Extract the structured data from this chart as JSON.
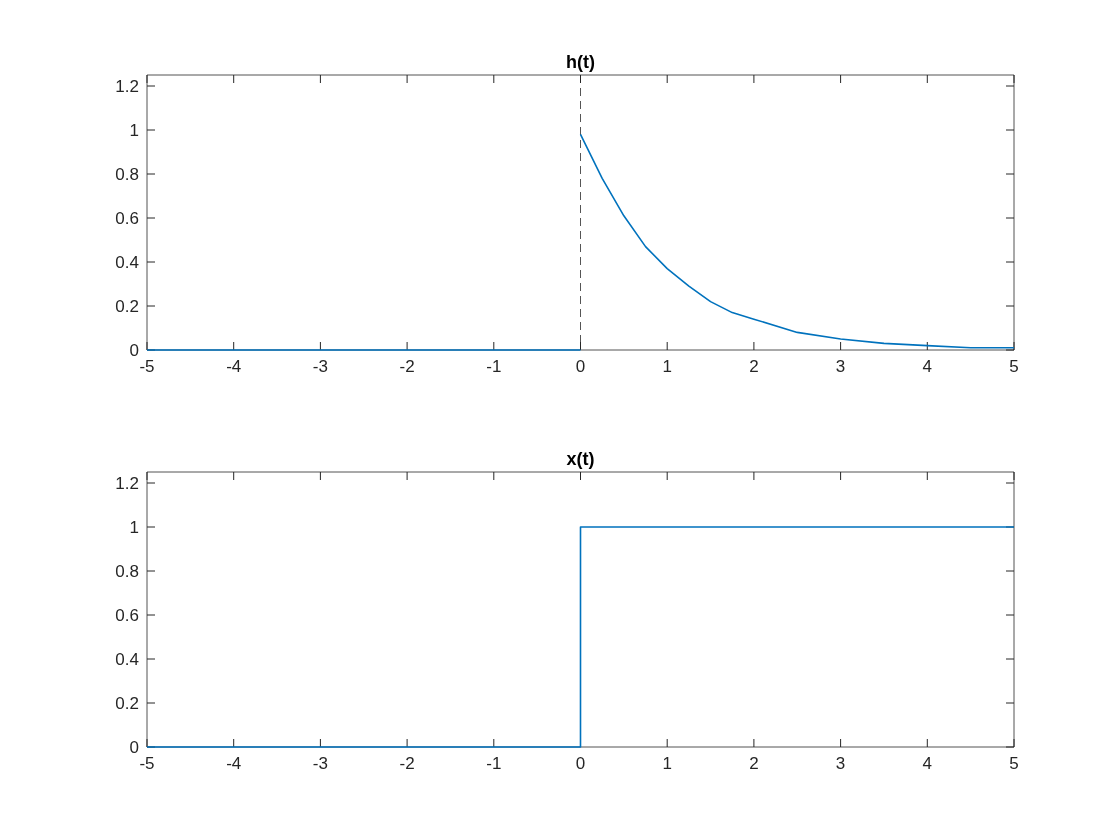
{
  "chart_data": [
    {
      "type": "line",
      "title": "h(t)",
      "xlim": [
        -5,
        5
      ],
      "xticks": [
        -5,
        -4,
        -3,
        -2,
        -1,
        0,
        1,
        2,
        3,
        4,
        5
      ],
      "ylim": [
        0,
        1.25
      ],
      "yticks": [
        0,
        0.2,
        0.4,
        0.6,
        0.8,
        1,
        1.2
      ],
      "series": [
        {
          "color": "#0072bd",
          "x": [
            -5,
            0
          ],
          "values": [
            0,
            0
          ]
        },
        {
          "color": "#0072bd",
          "x": [
            0,
            0.25,
            0.5,
            0.75,
            1,
            1.25,
            1.5,
            1.75,
            2,
            2.5,
            3,
            3.5,
            4,
            4.5,
            5
          ],
          "values": [
            0.98,
            0.78,
            0.61,
            0.47,
            0.37,
            0.29,
            0.22,
            0.17,
            0.14,
            0.08,
            0.05,
            0.03,
            0.02,
            0.01,
            0.01
          ]
        }
      ],
      "ref_lines": [
        {
          "axis": "x",
          "value": 0,
          "color": "#555555",
          "line_style": "dashed"
        }
      ],
      "grid": false
    },
    {
      "type": "step",
      "title": "x(t)",
      "xlim": [
        -5,
        5
      ],
      "xticks": [
        -5,
        -4,
        -3,
        -2,
        -1,
        0,
        1,
        2,
        3,
        4,
        5
      ],
      "ylim": [
        0,
        1.25
      ],
      "yticks": [
        0,
        0.2,
        0.4,
        0.6,
        0.8,
        1,
        1.2
      ],
      "series": [
        {
          "color": "#0072bd",
          "x": [
            -5,
            0,
            5
          ],
          "values": [
            0,
            1,
            1
          ]
        }
      ],
      "grid": false
    }
  ]
}
